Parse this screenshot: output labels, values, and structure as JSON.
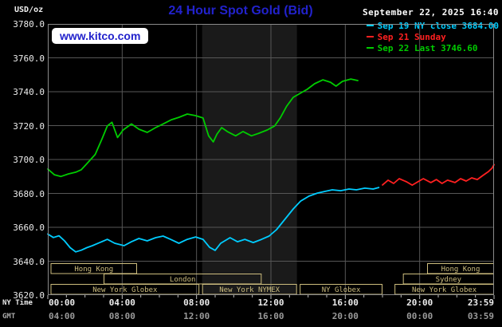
{
  "header": {
    "unit": "USD/oz",
    "title": "24 Hour Spot Gold (Bid)",
    "datetime": "September 22, 2025 16:40"
  },
  "watermark": "www.kitco.com",
  "axis": {
    "ny_time_label": "NY Time",
    "gmt_label": "GMT",
    "ny_ticks": [
      "00:00",
      "04:00",
      "08:00",
      "12:00",
      "16:00",
      "20:00",
      "23:59"
    ],
    "gmt_ticks": [
      "04:00",
      "08:00",
      "12:00",
      "16:00",
      "20:00",
      "00:00",
      "03:59"
    ],
    "y_ticks": [
      "3780.0",
      "3760.0",
      "3740.0",
      "3720.0",
      "3700.0",
      "3680.0",
      "3660.0",
      "3640.0",
      "3620.0"
    ]
  },
  "sessions": [
    {
      "row": 0,
      "label": "Hong Kong",
      "start": 0.15,
      "end": 4.8
    },
    {
      "row": 0,
      "label": "Hong Kong",
      "start": 20.4,
      "end": 24
    },
    {
      "row": 1,
      "label": "London",
      "start": 3.0,
      "end": 11.5
    },
    {
      "row": 1,
      "label": "Sydney",
      "start": 19.1,
      "end": 24
    },
    {
      "row": 2,
      "label": "New York Globex",
      "start": 0.15,
      "end": 8.15
    },
    {
      "row": 2,
      "label": "New York NYMEX",
      "start": 8.3,
      "end": 13.4
    },
    {
      "row": 2,
      "label": "NY Globex",
      "start": 13.55,
      "end": 18.0
    },
    {
      "row": 2,
      "label": "New York Globex",
      "start": 18.65,
      "end": 24
    }
  ],
  "colors": {
    "title_blue": "#2222cc",
    "cyan": "#00ccff",
    "red": "#ff2020",
    "green": "#00cc00",
    "grid": "#575757",
    "border": "#8a8a8a",
    "session": "#cdbd7e",
    "band": "#1a1a1a",
    "tick": "#bbbbbb"
  },
  "chart_data": {
    "type": "line",
    "title": "24 Hour Spot Gold (Bid)",
    "ylabel": "USD/oz",
    "xlabel": "NY Time",
    "ylim": [
      3620,
      3780
    ],
    "xlim_hours": [
      0,
      24
    ],
    "y_gridline_step": 20,
    "x_gridline_step_hours": 4,
    "grid": true,
    "legend_position": "top-right",
    "nymex_band_hours": [
      8.3,
      13.4
    ],
    "series": [
      {
        "id": "sep19",
        "name": "Sep 19 NY close",
        "legend": "Sep 19 NY close 3684.00",
        "close_value": 3684.0,
        "color": "cyan",
        "points": [
          [
            0,
            3656
          ],
          [
            0.3,
            3654
          ],
          [
            0.6,
            3655
          ],
          [
            0.9,
            3652
          ],
          [
            1.2,
            3648
          ],
          [
            1.5,
            3645.5
          ],
          [
            1.8,
            3646.5
          ],
          [
            2.1,
            3648
          ],
          [
            2.4,
            3649.2
          ],
          [
            2.8,
            3651
          ],
          [
            3.2,
            3652.9
          ],
          [
            3.6,
            3650.6
          ],
          [
            4.1,
            3649.2
          ],
          [
            4.5,
            3651.5
          ],
          [
            4.9,
            3653.4
          ],
          [
            5.35,
            3652
          ],
          [
            5.8,
            3653.9
          ],
          [
            6.2,
            3654.8
          ],
          [
            6.6,
            3652.9
          ],
          [
            7.05,
            3650.6
          ],
          [
            7.5,
            3652.9
          ],
          [
            7.95,
            3654.3
          ],
          [
            8.35,
            3652.9
          ],
          [
            8.7,
            3648.2
          ],
          [
            9.0,
            3646.4
          ],
          [
            9.3,
            3650.6
          ],
          [
            9.8,
            3653.9
          ],
          [
            10.2,
            3651.5
          ],
          [
            10.6,
            3652.9
          ],
          [
            11.05,
            3651
          ],
          [
            11.5,
            3652.9
          ],
          [
            11.9,
            3654.8
          ],
          [
            12.3,
            3658.6
          ],
          [
            12.75,
            3664.7
          ],
          [
            13.2,
            3670.8
          ],
          [
            13.6,
            3675.5
          ],
          [
            14.05,
            3678.4
          ],
          [
            14.5,
            3680.2
          ],
          [
            14.9,
            3681.2
          ],
          [
            15.3,
            3682.1
          ],
          [
            15.75,
            3681.6
          ],
          [
            16.2,
            3682.6
          ],
          [
            16.6,
            3682.1
          ],
          [
            17.05,
            3683.1
          ],
          [
            17.5,
            3682.6
          ],
          [
            17.8,
            3683.5
          ]
        ]
      },
      {
        "id": "sep21",
        "name": "Sep 21 Sunday",
        "legend": "Sep 21 Sunday",
        "color": "red",
        "points": [
          [
            18.0,
            3685
          ],
          [
            18.3,
            3687.8
          ],
          [
            18.6,
            3685.9
          ],
          [
            18.9,
            3688.7
          ],
          [
            19.3,
            3686.8
          ],
          [
            19.6,
            3684.9
          ],
          [
            19.9,
            3686.8
          ],
          [
            20.2,
            3688.7
          ],
          [
            20.6,
            3686.4
          ],
          [
            20.9,
            3688.2
          ],
          [
            21.2,
            3685.9
          ],
          [
            21.5,
            3687.8
          ],
          [
            21.9,
            3686.4
          ],
          [
            22.2,
            3688.7
          ],
          [
            22.5,
            3687.3
          ],
          [
            22.8,
            3689.2
          ],
          [
            23.1,
            3688.2
          ],
          [
            23.4,
            3690.6
          ],
          [
            23.7,
            3692.9
          ],
          [
            23.9,
            3695
          ],
          [
            24,
            3697
          ]
        ]
      },
      {
        "id": "sep22",
        "name": "Sep 22 Last",
        "legend": "Sep 22 Last 3746.60",
        "last_value": 3746.6,
        "color": "green",
        "points": [
          [
            0,
            3694.4
          ],
          [
            0.35,
            3691
          ],
          [
            0.7,
            3690
          ],
          [
            1.1,
            3691.5
          ],
          [
            1.5,
            3692.5
          ],
          [
            1.8,
            3694
          ],
          [
            2.1,
            3697.5
          ],
          [
            2.55,
            3703
          ],
          [
            2.9,
            3711.8
          ],
          [
            3.2,
            3719.8
          ],
          [
            3.45,
            3722
          ],
          [
            3.75,
            3713
          ],
          [
            4.05,
            3717.4
          ],
          [
            4.5,
            3721
          ],
          [
            4.9,
            3717.9
          ],
          [
            5.35,
            3716
          ],
          [
            5.8,
            3718.8
          ],
          [
            6.2,
            3721
          ],
          [
            6.65,
            3723.5
          ],
          [
            7.05,
            3724.9
          ],
          [
            7.5,
            3726.8
          ],
          [
            7.95,
            3725.9
          ],
          [
            8.35,
            3724.5
          ],
          [
            8.65,
            3714
          ],
          [
            8.9,
            3710.4
          ],
          [
            9.1,
            3715
          ],
          [
            9.35,
            3718.8
          ],
          [
            9.65,
            3716.5
          ],
          [
            10.1,
            3714
          ],
          [
            10.5,
            3716.5
          ],
          [
            10.95,
            3714
          ],
          [
            11.35,
            3715.5
          ],
          [
            11.8,
            3717.4
          ],
          [
            12.2,
            3719.8
          ],
          [
            12.5,
            3724.5
          ],
          [
            12.85,
            3731.5
          ],
          [
            13.2,
            3736.7
          ],
          [
            13.5,
            3738.6
          ],
          [
            13.95,
            3741.4
          ],
          [
            14.35,
            3744.7
          ],
          [
            14.8,
            3747
          ],
          [
            15.2,
            3745.6
          ],
          [
            15.5,
            3743.3
          ],
          [
            15.85,
            3746.1
          ],
          [
            16.3,
            3747.5
          ],
          [
            16.67,
            3746.6
          ]
        ]
      }
    ]
  }
}
